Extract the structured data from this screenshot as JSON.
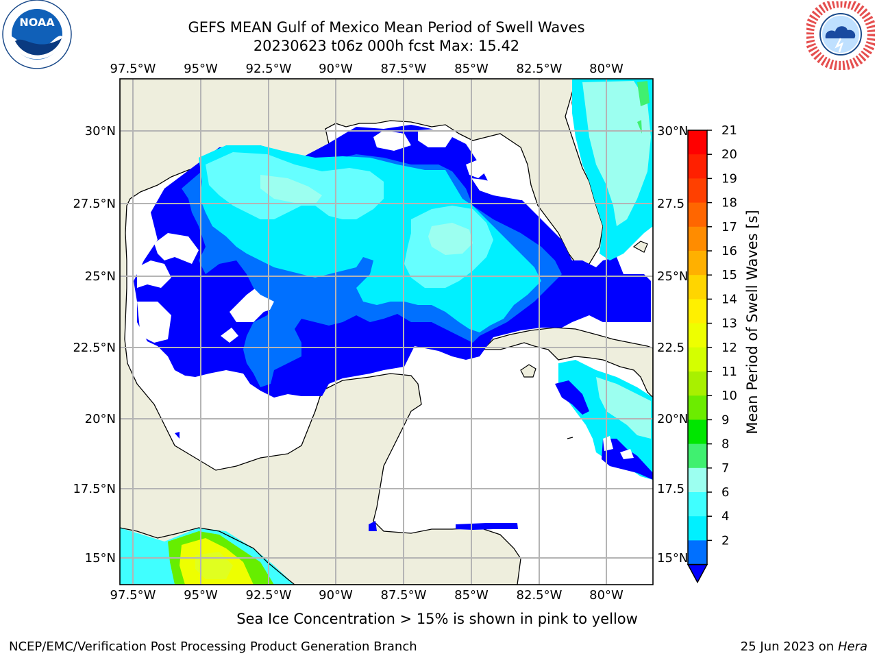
{
  "header": {
    "title_line1": "GEFS MEAN Gulf of Mexico Mean Period of Swell Waves",
    "title_line2": "20230623 t06z 000h fcst   Max: 15.42"
  },
  "logos": {
    "left": {
      "name": "noaa-logo",
      "text": "NOAA"
    },
    "right": {
      "name": "nws-logo"
    }
  },
  "map": {
    "lon_labels": [
      "97.5°W",
      "95°W",
      "92.5°W",
      "90°W",
      "87.5°W",
      "85°W",
      "82.5°W",
      "80°W"
    ],
    "lat_labels_left": [
      "30°N",
      "27.5°N",
      "25°N",
      "22.5°N",
      "20°N",
      "17.5°N",
      "15°N"
    ],
    "lat_labels_right": [
      "30°N",
      "27.5",
      "25°N",
      "22.5",
      "20°N",
      "17.5",
      "15°N"
    ],
    "colors": {
      "land": "#eeeedd",
      "ocean": "#ffffff",
      "grid": "#b4b4b4"
    }
  },
  "colorbar": {
    "label": "Mean Period of Swell Waves [s]",
    "ticks": [
      "21",
      "20",
      "19",
      "18",
      "17",
      "16",
      "15",
      "14",
      "13",
      "12",
      "11",
      "10",
      "9",
      "8",
      "7",
      "6",
      "4",
      "2"
    ],
    "colors": [
      "#ff0000",
      "#ff2000",
      "#ff4000",
      "#ff6600",
      "#ff8c00",
      "#ffb000",
      "#ffd500",
      "#fff000",
      "#eeff00",
      "#d4ff00",
      "#a8f000",
      "#6cec00",
      "#00e600",
      "#40f070",
      "#9cfff0",
      "#40ffff",
      "#00f0ff",
      "#0070ff"
    ],
    "extend_color": "#0000ff"
  },
  "caption": "Sea Ice Concentration > 15% is shown in pink to yellow",
  "footer": {
    "left": "NCEP/EMC/Verification Post Processing Product Generation Branch",
    "right_prefix": "25 Jun 2023 on",
    "right_host": "Hera"
  }
}
